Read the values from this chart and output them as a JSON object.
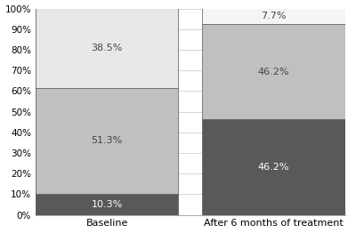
{
  "categories": [
    "Baseline",
    "After 6 months of treatment"
  ],
  "baseline_vals": [
    10.3,
    51.3,
    38.5
  ],
  "after_vals": [
    46.2,
    46.2,
    7.7
  ],
  "bar_colors_baseline": [
    "#595959",
    "#c0c0c0",
    "#e8e8e8"
  ],
  "bar_colors_after": [
    "#595959",
    "#c0c0c0",
    "#f5f5f5"
  ],
  "ylim": [
    0,
    100
  ],
  "yticks": [
    0,
    10,
    20,
    30,
    40,
    50,
    60,
    70,
    80,
    90,
    100
  ],
  "ytick_labels": [
    "0%",
    "10%",
    "20%",
    "30%",
    "40%",
    "50%",
    "60%",
    "70%",
    "80%",
    "90%",
    "100%"
  ],
  "background_color": "#ffffff",
  "grid_color": "#c8c8c8",
  "label_fontsize": 8,
  "tick_fontsize": 7.5,
  "xticklabel_fontsize": 8,
  "bar_edge_color": "#555555",
  "bar_edge_lw": 0.5,
  "label_color_bottom_b": "#ffffff",
  "label_color_mid_b": "#444444",
  "label_color_top_b": "#444444",
  "label_color_bottom_a": "#ffffff",
  "label_color_mid_a": "#444444",
  "label_color_top_a": "#444444"
}
